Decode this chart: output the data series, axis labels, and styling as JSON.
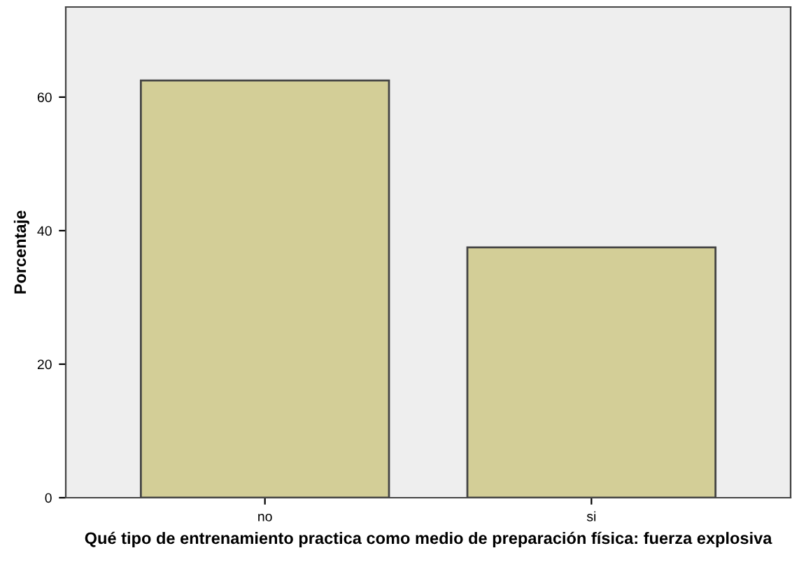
{
  "chart_data": {
    "type": "bar",
    "xlabel": "Qué tipo de entrenamiento practica como medio de preparación física: fuerza explosiva",
    "ylabel": "Porcentaje",
    "categories": [
      "no",
      "si"
    ],
    "values": [
      62.5,
      37.5
    ],
    "color": "#d3ce97",
    "ylim": [
      0,
      73.5
    ],
    "yticks": [
      0,
      20,
      40,
      60
    ],
    "grid": false
  }
}
